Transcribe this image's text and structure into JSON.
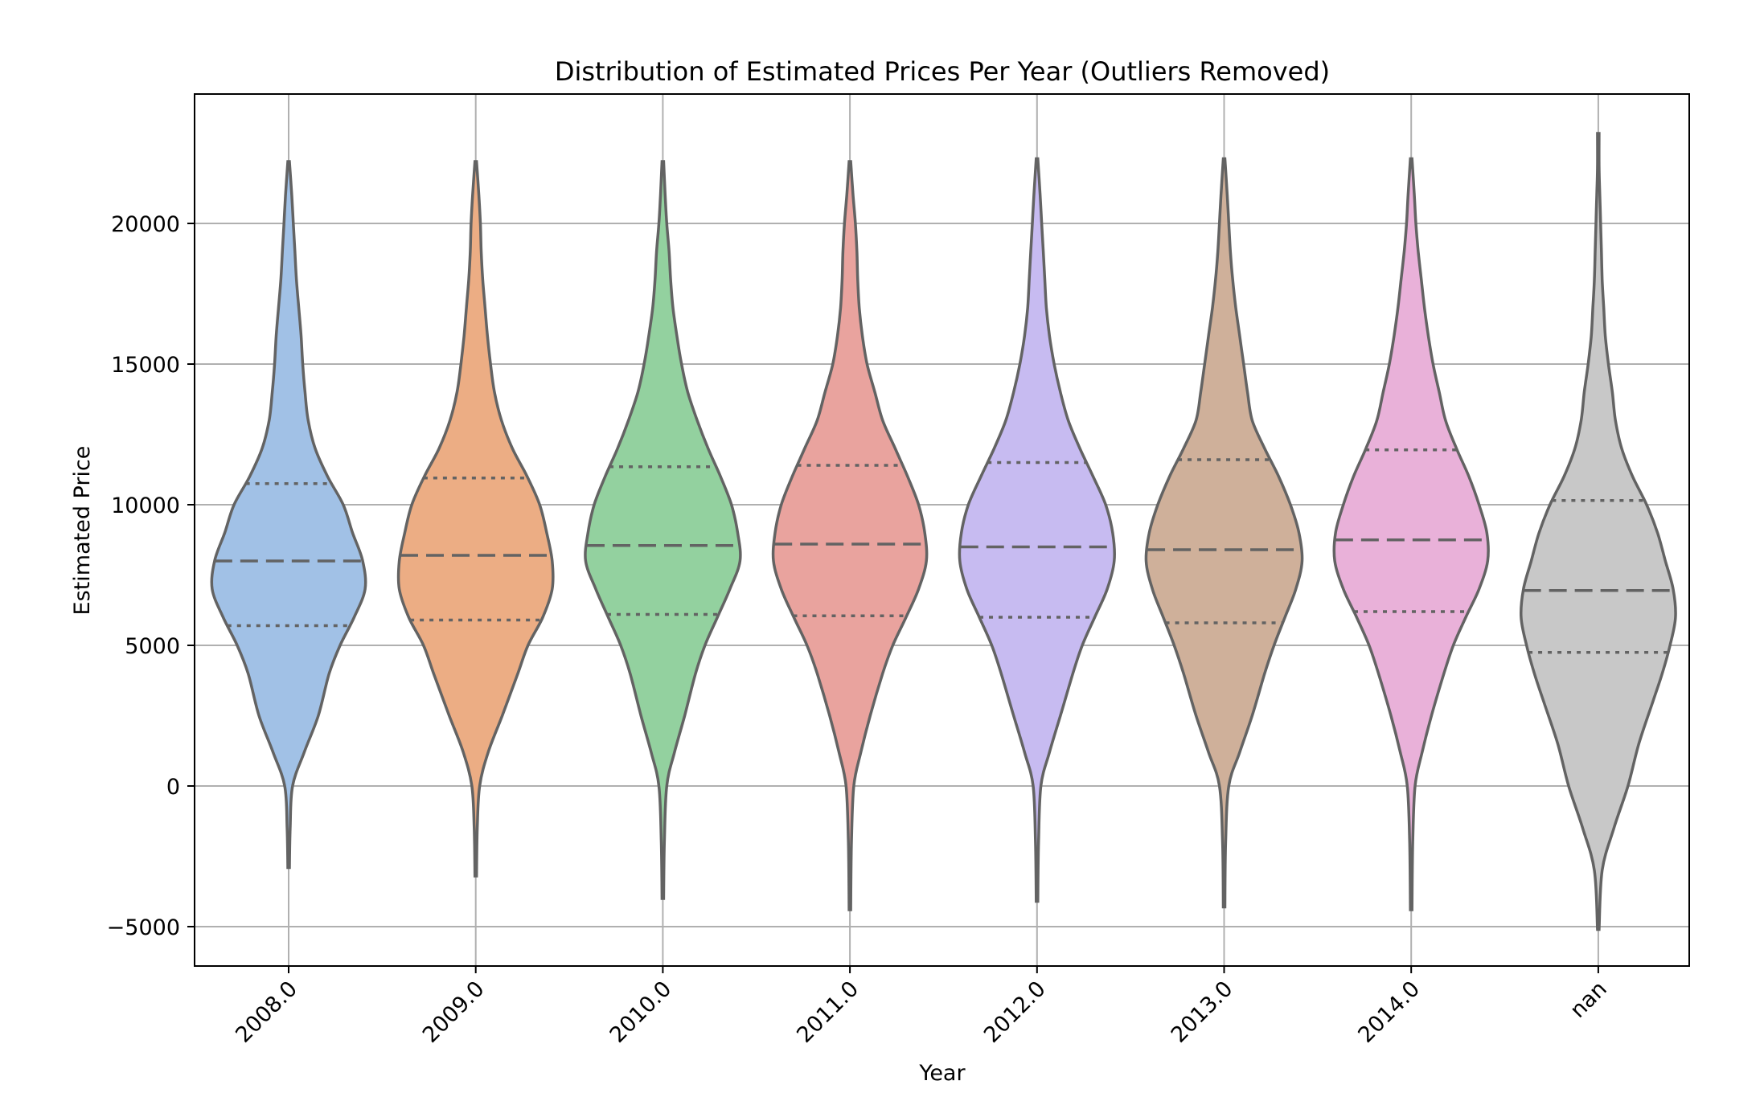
{
  "chart_data": {
    "type": "violin",
    "title": "Distribution of Estimated Prices Per Year (Outliers Removed)",
    "xlabel": "Year",
    "ylabel": "Estimated Price",
    "categories": [
      "2008.0",
      "2009.0",
      "2010.0",
      "2011.0",
      "2012.0",
      "2013.0",
      "2014.0",
      "nan"
    ],
    "yticks": [
      -5000,
      0,
      5000,
      10000,
      15000,
      20000
    ],
    "ytick_labels": [
      "−5000",
      "0",
      "5000",
      "10000",
      "15000",
      "20000"
    ],
    "ylim": [
      -6400,
      24600
    ],
    "grid": true,
    "inner": "quartile",
    "colors": [
      "#a1c1e6",
      "#ecad84",
      "#93d19f",
      "#e9a39e",
      "#c7bbf1",
      "#cfb09a",
      "#e9b1d9",
      "#c8c8c8"
    ],
    "series": [
      {
        "category": "2008.0",
        "min": -2900,
        "q1": 5700,
        "median": 8000,
        "q3": 10750,
        "max": 22200,
        "density_y": [
          -2900,
          -1500,
          0,
          1200,
          2500,
          4000,
          5000,
          6000,
          7000,
          8000,
          9000,
          10000,
          11000,
          12000,
          13000,
          14000,
          15000,
          16000,
          17000,
          18000,
          19000,
          20000,
          21000,
          22200
        ],
        "density_w": [
          0.01,
          0.02,
          0.05,
          0.2,
          0.38,
          0.52,
          0.66,
          0.84,
          0.98,
          0.95,
          0.82,
          0.7,
          0.5,
          0.34,
          0.25,
          0.21,
          0.18,
          0.16,
          0.13,
          0.1,
          0.08,
          0.06,
          0.04,
          0.01
        ]
      },
      {
        "category": "2009.0",
        "min": -3200,
        "q1": 5900,
        "median": 8200,
        "q3": 10950,
        "max": 22200,
        "density_y": [
          -3200,
          -1500,
          0,
          1200,
          2500,
          4000,
          5000,
          6000,
          7000,
          8000,
          9000,
          10000,
          11000,
          12000,
          13000,
          14000,
          15000,
          16000,
          17000,
          18000,
          19000,
          20000,
          21000,
          22200
        ],
        "density_w": [
          0.01,
          0.02,
          0.05,
          0.16,
          0.34,
          0.54,
          0.67,
          0.86,
          0.98,
          0.98,
          0.91,
          0.82,
          0.66,
          0.47,
          0.33,
          0.24,
          0.19,
          0.15,
          0.12,
          0.09,
          0.07,
          0.06,
          0.04,
          0.01
        ]
      },
      {
        "category": "2010.0",
        "min": -4000,
        "q1": 6100,
        "median": 8550,
        "q3": 11350,
        "max": 22200,
        "density_y": [
          -4000,
          -2000,
          0,
          1200,
          2500,
          4000,
          5000,
          6000,
          7000,
          8000,
          9000,
          10000,
          11000,
          12000,
          13000,
          14000,
          15000,
          16000,
          17000,
          18000,
          19000,
          20000,
          21000,
          22200
        ],
        "density_w": [
          0.01,
          0.02,
          0.05,
          0.15,
          0.28,
          0.42,
          0.54,
          0.7,
          0.86,
          0.99,
          0.96,
          0.88,
          0.74,
          0.58,
          0.44,
          0.32,
          0.24,
          0.18,
          0.13,
          0.1,
          0.08,
          0.05,
          0.03,
          0.01
        ]
      },
      {
        "category": "2011.0",
        "min": -4400,
        "q1": 6050,
        "median": 8600,
        "q3": 11400,
        "max": 22200,
        "density_y": [
          -4400,
          -2000,
          0,
          1200,
          2500,
          4000,
          5000,
          6000,
          7000,
          8000,
          9000,
          10000,
          11000,
          12000,
          13000,
          14000,
          15000,
          16000,
          17000,
          18000,
          19000,
          20000,
          21000,
          22200
        ],
        "density_w": [
          0.01,
          0.02,
          0.05,
          0.14,
          0.26,
          0.42,
          0.55,
          0.72,
          0.88,
          0.98,
          0.96,
          0.88,
          0.74,
          0.58,
          0.42,
          0.32,
          0.22,
          0.16,
          0.12,
          0.1,
          0.09,
          0.07,
          0.04,
          0.01
        ]
      },
      {
        "category": "2012.0",
        "min": -4100,
        "q1": 6000,
        "median": 8500,
        "q3": 11500,
        "max": 22300,
        "density_y": [
          -4100,
          -2000,
          0,
          1200,
          2500,
          4000,
          5000,
          6000,
          7000,
          8000,
          9000,
          10000,
          11000,
          12000,
          13000,
          14000,
          15000,
          16000,
          17000,
          18000,
          19000,
          20000,
          21000,
          22300
        ],
        "density_w": [
          0.01,
          0.02,
          0.05,
          0.16,
          0.3,
          0.46,
          0.58,
          0.74,
          0.9,
          0.99,
          0.97,
          0.88,
          0.72,
          0.55,
          0.4,
          0.3,
          0.22,
          0.16,
          0.12,
          0.1,
          0.08,
          0.06,
          0.04,
          0.01
        ]
      },
      {
        "category": "2013.0",
        "min": -4300,
        "q1": 5800,
        "median": 8400,
        "q3": 11600,
        "max": 22300,
        "density_y": [
          -4300,
          -2000,
          0,
          1200,
          2500,
          4000,
          5000,
          6000,
          7000,
          8000,
          9000,
          10000,
          11000,
          12000,
          13000,
          14000,
          15000,
          16000,
          17000,
          18000,
          19000,
          20000,
          21000,
          22300
        ],
        "density_w": [
          0.01,
          0.02,
          0.06,
          0.2,
          0.36,
          0.52,
          0.64,
          0.78,
          0.92,
          1.0,
          0.96,
          0.85,
          0.7,
          0.52,
          0.36,
          0.3,
          0.25,
          0.2,
          0.15,
          0.11,
          0.08,
          0.06,
          0.04,
          0.01
        ]
      },
      {
        "category": "2014.0",
        "min": -4400,
        "q1": 6200,
        "median": 8750,
        "q3": 11950,
        "max": 22300,
        "density_y": [
          -4400,
          -2000,
          0,
          1200,
          2500,
          4000,
          5000,
          6000,
          7000,
          8000,
          9000,
          10000,
          11000,
          12000,
          13000,
          14000,
          15000,
          16000,
          17000,
          18000,
          19000,
          20000,
          21000,
          22300
        ],
        "density_w": [
          0.01,
          0.02,
          0.05,
          0.14,
          0.26,
          0.42,
          0.54,
          0.7,
          0.87,
          0.98,
          0.97,
          0.87,
          0.74,
          0.58,
          0.44,
          0.36,
          0.28,
          0.22,
          0.17,
          0.13,
          0.09,
          0.06,
          0.04,
          0.01
        ]
      },
      {
        "category": "nan",
        "min": -5100,
        "q1": 4750,
        "median": 6950,
        "q3": 10150,
        "max": 23200,
        "density_y": [
          -5100,
          -3000,
          -1500,
          0,
          1500,
          3000,
          4000,
          5000,
          6000,
          7000,
          8000,
          9000,
          10000,
          11000,
          12000,
          13000,
          14000,
          15000,
          16000,
          17000,
          18000,
          19000,
          20000,
          21000,
          22000,
          23200
        ],
        "density_w": [
          0.01,
          0.05,
          0.2,
          0.38,
          0.52,
          0.7,
          0.82,
          0.92,
          0.99,
          0.96,
          0.86,
          0.76,
          0.62,
          0.44,
          0.3,
          0.22,
          0.18,
          0.13,
          0.09,
          0.07,
          0.05,
          0.04,
          0.03,
          0.02,
          0.01,
          0.01
        ]
      }
    ]
  }
}
